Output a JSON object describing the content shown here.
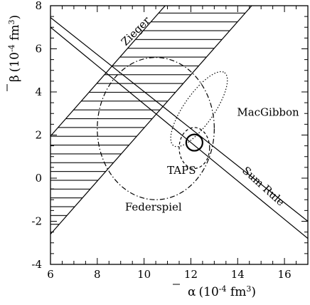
{
  "chart_data": {
    "type": "scatter",
    "title": "",
    "xlabel": {
      "symbol": "α",
      "units_open": "(10",
      "exp": "-4",
      "units_mid": " fm",
      "exp2": "3",
      "units_close": ")"
    },
    "ylabel": {
      "symbol": "β",
      "units_open": "(10",
      "exp": "-4",
      "units_mid": " fm",
      "exp2": "3",
      "units_close": ")"
    },
    "xlim": [
      6,
      17
    ],
    "ylim": [
      -4,
      8
    ],
    "xticks": [
      "6",
      "8",
      "10",
      "12",
      "14",
      "16"
    ],
    "yticks": [
      "-4",
      "-2",
      "0",
      "2",
      "4",
      "6",
      "8"
    ],
    "grid": false,
    "legend": "none",
    "bands": [
      {
        "name": "Zieger",
        "hatched": true,
        "lower_line": [
          [
            6,
            -2.6
          ],
          [
            14.6,
            8
          ]
        ],
        "upper_line": [
          [
            6,
            1.95
          ],
          [
            10.9,
            8
          ]
        ]
      },
      {
        "name": "Sum Rule",
        "hatched": false,
        "lower_line": [
          [
            6,
            7.0
          ],
          [
            17,
            -2.8
          ]
        ],
        "upper_line": [
          [
            6,
            7.45
          ],
          [
            17,
            -2.0
          ]
        ]
      }
    ],
    "contours": [
      {
        "name": "Federspiel",
        "style": "dash-dot",
        "center": [
          10.5,
          2.3
        ],
        "rx": 2.5,
        "ry": 3.3,
        "angle_deg": 0
      },
      {
        "name": "MacGibbon",
        "style": "dotted",
        "center": [
          12.35,
          3.2
        ],
        "rx": 1.9,
        "ry": 0.7,
        "angle_deg": 55
      },
      {
        "name": "TAPS",
        "style": "dashed",
        "center": [
          12.15,
          1.4
        ],
        "rx": 0.65,
        "ry": 0.95,
        "angle_deg": 0
      },
      {
        "name": "",
        "style": "solid",
        "center": [
          12.15,
          1.65
        ],
        "rx": 0.35,
        "ry": 0.38,
        "angle_deg": 0
      }
    ],
    "annotations": [
      {
        "text": "Zieger",
        "x": 9.75,
        "y": 6.7,
        "rotate": -45
      },
      {
        "text": "MacGibbon",
        "x": 15.3,
        "y": 2.9,
        "rotate": 0
      },
      {
        "text": "TAPS",
        "x": 11.6,
        "y": 0.2,
        "rotate": 0
      },
      {
        "text": "Federspiel",
        "x": 10.4,
        "y": -1.5,
        "rotate": 0
      },
      {
        "text": "Sum Rule",
        "x": 15.0,
        "y": -0.5,
        "rotate": 42
      }
    ]
  }
}
